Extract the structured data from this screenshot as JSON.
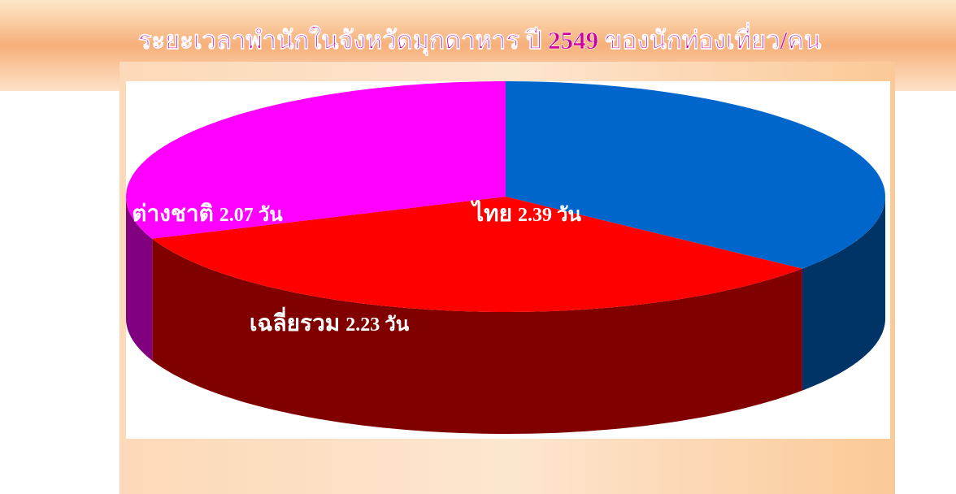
{
  "chart_data": {
    "type": "pie3d",
    "title": "ระยะเวลาพำนักในจังหวัดมุกดาหาร ปี 2549 ของนักท่องเที่ยว/คน",
    "categories": [
      "ไทย",
      "เฉลี่ยรวม",
      "ต่างชาติ"
    ],
    "values": [
      2.39,
      2.23,
      2.07
    ],
    "value_labels": [
      "2.39 วัน",
      "2.23 วัน",
      "2.07 วัน"
    ],
    "colors": [
      "#0066cc",
      "#ff0000",
      "#ff00ff"
    ]
  }
}
